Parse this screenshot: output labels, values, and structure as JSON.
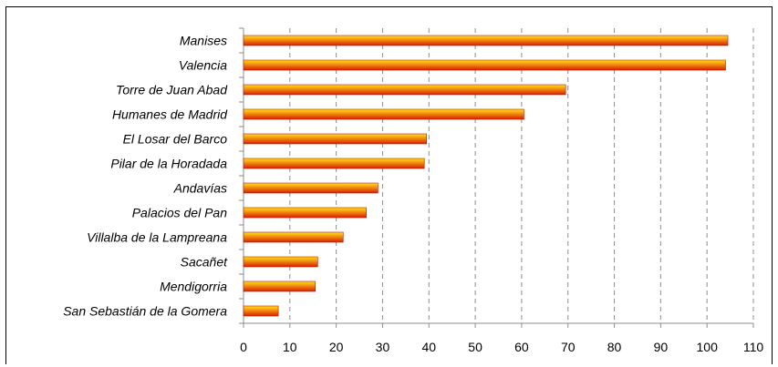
{
  "chart_data": {
    "type": "bar",
    "orientation": "horizontal",
    "categories": [
      "Manises",
      "Valencia",
      "Torre de Juan Abad",
      "Humanes de Madrid",
      "El Losar del Barco",
      "Pilar de la Horadada",
      "Andavías",
      "Palacios del Pan",
      "Villalba de la Lampreana",
      "Sacañet",
      "Mendigorria",
      "San Sebastián de la Gomera"
    ],
    "values": [
      104.5,
      104,
      69.5,
      60.5,
      39.5,
      39,
      29,
      26.5,
      21.5,
      16,
      15.5,
      7.5
    ],
    "xlim": [
      0,
      110
    ],
    "xticks": [
      0,
      10,
      20,
      30,
      40,
      50,
      60,
      70,
      80,
      90,
      100,
      110
    ],
    "grid": "vertical-dashed",
    "bar_gradient": [
      "#ffe21a",
      "#f28a10",
      "#d81e00"
    ],
    "title": "",
    "xlabel": "",
    "ylabel": ""
  }
}
